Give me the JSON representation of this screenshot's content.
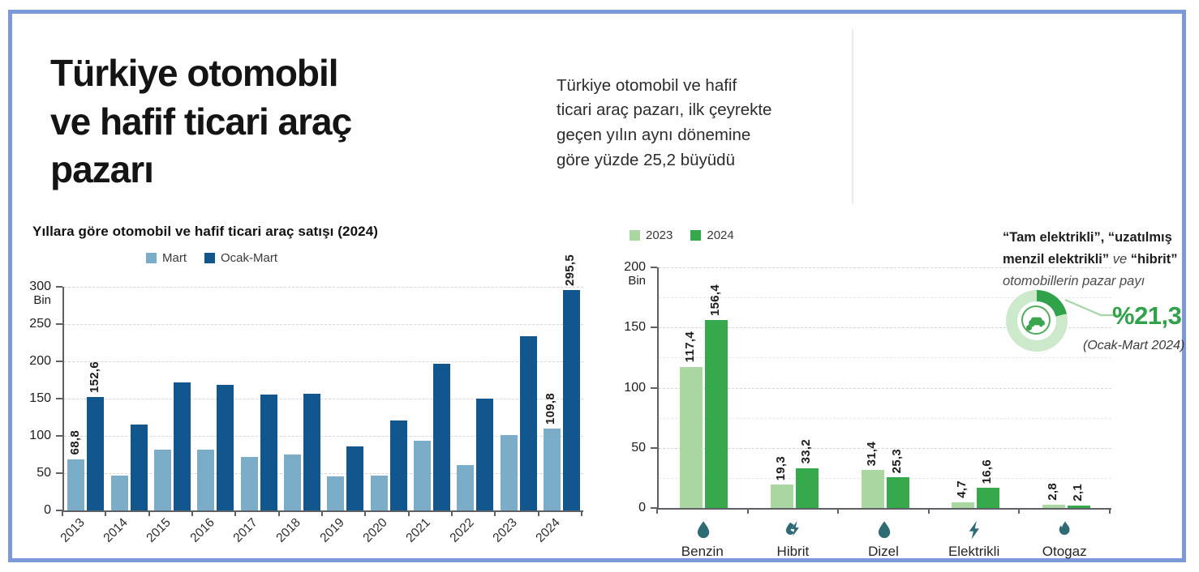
{
  "header": {
    "title": "Türkiye otomobil\nve hafif ticari araç\npazarı",
    "subtitle": "Türkiye otomobil ve hafif ticari araç pazarı, ilk çeyrekte geçen yılın aynı dönemine göre yüzde 25,2 büyüdü"
  },
  "chart_data": [
    {
      "type": "bar",
      "title": "Yıllara göre otomobil ve hafif ticari araç satışı (2024)",
      "unit": "Bin",
      "categories": [
        "2013",
        "2014",
        "2015",
        "2016",
        "2017",
        "2018",
        "2019",
        "2020",
        "2021",
        "2022",
        "2023",
        "2024"
      ],
      "series": [
        {
          "name": "Mart",
          "color": "#7badc9",
          "values": [
            68.8,
            47,
            82,
            81,
            72,
            75,
            46,
            47,
            93,
            61,
            101,
            109.8
          ],
          "labels": [
            "68,8",
            null,
            null,
            null,
            null,
            null,
            null,
            null,
            null,
            null,
            null,
            "109,8"
          ]
        },
        {
          "name": "Ocak-Mart",
          "color": "#12568e",
          "values": [
            152.6,
            115,
            172,
            168,
            155,
            157,
            86,
            121,
            197,
            150,
            234,
            295.5
          ],
          "labels": [
            "152,6",
            null,
            null,
            null,
            null,
            null,
            null,
            null,
            null,
            null,
            null,
            "295,5"
          ]
        }
      ],
      "ylim": [
        0,
        300
      ],
      "yticks": [
        0,
        50,
        100,
        150,
        200,
        250,
        300
      ],
      "grid": "dashed",
      "legend_position": "top-left"
    },
    {
      "type": "bar",
      "title": "",
      "unit": "Bin",
      "categories": [
        "Benzin",
        "Hibrit",
        "Dizel",
        "Elektrikli",
        "Otogaz"
      ],
      "icons": [
        "droplet",
        "droplet-bolt",
        "droplet",
        "bolt",
        "flame"
      ],
      "icon_color": "#2e6b75",
      "series": [
        {
          "name": "2023",
          "color": "#abd7a3",
          "values": [
            117.4,
            19.3,
            31.4,
            4.7,
            2.8
          ],
          "labels": [
            "117,4",
            "19,3",
            "31,4",
            "4,7",
            "2,8"
          ]
        },
        {
          "name": "2024",
          "color": "#35a94c",
          "values": [
            156.4,
            33.2,
            25.3,
            16.6,
            2.1
          ],
          "labels": [
            "156,4",
            "33,2",
            "25,3",
            "16,6",
            "2,1"
          ]
        }
      ],
      "ylim": [
        0,
        200
      ],
      "yticks": [
        0,
        50,
        100,
        150,
        200
      ],
      "grid": "dashed",
      "legend_position": "top-left"
    },
    {
      "type": "donut",
      "value_pct": 21.3,
      "value_label": "%21,3",
      "period": "(Ocak-Mart 2024)",
      "heading_bold_1": "“Tam elektrikli”, “uzatılmış",
      "heading_bold_2": "menzil elektrikli”",
      "heading_mid": " ve ",
      "heading_bold_3": "“hibrit”",
      "heading_italic": "otomobillerin pazar payı",
      "segment_color": "#2fa24a",
      "track_color": "#cde9cc",
      "accent_color": "#31a24a"
    }
  ],
  "frame_border_color": "#7e99d9"
}
